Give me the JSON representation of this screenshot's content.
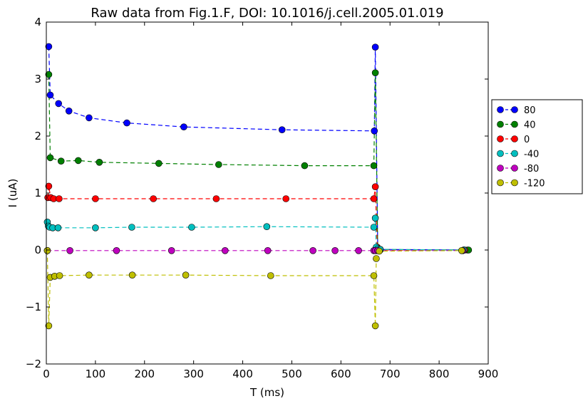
{
  "chart_data": {
    "type": "line",
    "title": "Raw data from Fig.1.F, DOI: 10.1016/j.cell.2005.01.019",
    "xlabel": "T (ms)",
    "ylabel": "I (uA)",
    "xlim": [
      0,
      900
    ],
    "ylim": [
      -2,
      4
    ],
    "xticks": [
      0,
      100,
      200,
      300,
      400,
      500,
      600,
      700,
      800,
      900
    ],
    "yticks": [
      -2,
      -1,
      0,
      1,
      2,
      3,
      4
    ],
    "xtick_labels": [
      "0",
      "100",
      "200",
      "300",
      "400",
      "500",
      "600",
      "700",
      "800",
      "900"
    ],
    "ytick_labels": [
      "−2",
      "−1",
      "0",
      "1",
      "2",
      "3",
      "4"
    ],
    "grid": false,
    "legend_position": "outside-right",
    "line_style": "dashed",
    "marker": "circle",
    "series": [
      {
        "name": "80",
        "color": "#0000ff",
        "x": [
          5,
          8,
          25,
          46,
          87,
          164,
          280,
          480,
          668,
          670,
          675,
          680,
          850,
          858
        ],
        "y": [
          3.57,
          2.72,
          2.57,
          2.44,
          2.32,
          2.23,
          2.16,
          2.11,
          2.09,
          3.56,
          0.02,
          0.01,
          0.0,
          0.0
        ]
      },
      {
        "name": "40",
        "color": "#008000",
        "x": [
          5,
          8,
          30,
          65,
          108,
          229,
          351,
          526,
          667,
          670,
          675,
          680,
          850,
          860
        ],
        "y": [
          3.08,
          1.62,
          1.56,
          1.57,
          1.54,
          1.52,
          1.5,
          1.48,
          1.48,
          3.11,
          0.02,
          0.01,
          0.0,
          0.0
        ]
      },
      {
        "name": "0",
        "color": "#ff0000",
        "x": [
          3,
          5,
          9,
          15,
          26,
          100,
          218,
          346,
          488,
          667,
          670,
          674,
          676,
          680,
          852
        ],
        "y": [
          0.92,
          1.12,
          0.92,
          0.9,
          0.9,
          0.9,
          0.9,
          0.9,
          0.9,
          0.9,
          1.11,
          0.05,
          0.02,
          0.0,
          0.0
        ]
      },
      {
        "name": "-40",
        "color": "#00bfbf",
        "x": [
          2,
          4,
          7,
          13,
          24,
          100,
          174,
          296,
          449,
          667,
          670,
          672,
          675,
          680,
          850
        ],
        "y": [
          0.49,
          0.42,
          0.4,
          0.39,
          0.39,
          0.39,
          0.4,
          0.4,
          0.41,
          0.4,
          0.56,
          0.05,
          0.02,
          0.01,
          0.0
        ]
      },
      {
        "name": "-80",
        "color": "#bf00bf",
        "x": [
          2,
          48,
          143,
          255,
          364,
          451,
          543,
          588,
          636,
          667,
          670,
          675,
          848
        ],
        "y": [
          -0.01,
          -0.01,
          -0.01,
          -0.01,
          -0.01,
          -0.01,
          -0.01,
          -0.01,
          -0.01,
          -0.01,
          -0.01,
          -0.01,
          -0.01
        ]
      },
      {
        "name": "-120",
        "color": "#bfbf00",
        "x": [
          2,
          5,
          8,
          17,
          27,
          87,
          175,
          284,
          457,
          667,
          670,
          672,
          678,
          846
        ],
        "y": [
          -0.01,
          -1.33,
          -0.48,
          -0.46,
          -0.45,
          -0.44,
          -0.44,
          -0.44,
          -0.45,
          -0.45,
          -1.33,
          -0.15,
          -0.02,
          -0.01
        ]
      }
    ]
  }
}
